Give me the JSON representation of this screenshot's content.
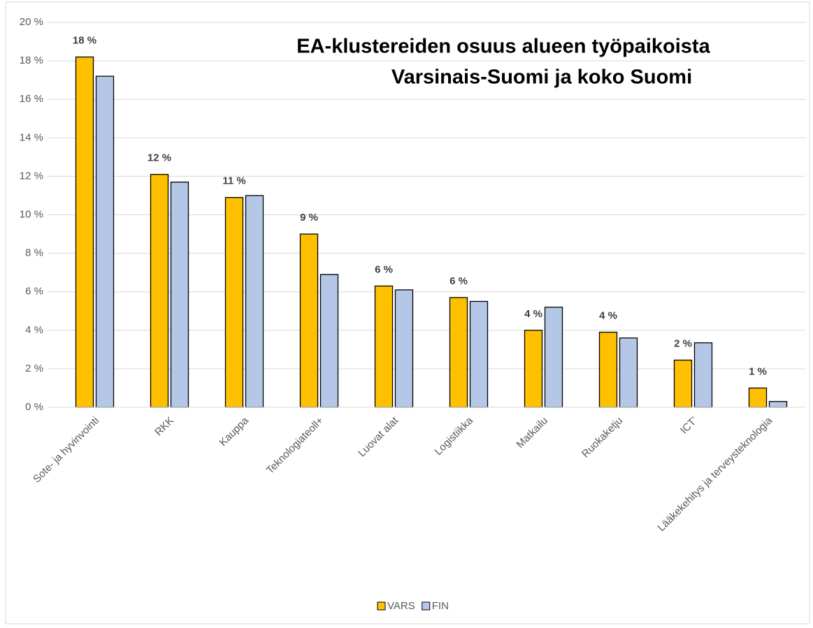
{
  "chart_data": {
    "type": "bar",
    "title": [
      "EA-klustereiden osuus alueen työpaikoista",
      "Varsinais-Suomi ja koko Suomi"
    ],
    "categories": [
      "Sote- ja hyvinvointi",
      "RKK",
      "Kauppa",
      "Teknologiateoll+",
      "Luovat alat",
      "Logistiikka",
      "Matkailu",
      "Ruokaketju",
      "ICT'",
      "Lääkekehitys ja terveysteknologia"
    ],
    "series": [
      {
        "name": "VARS",
        "color": "#ffc000",
        "values": [
          18.2,
          12.1,
          10.9,
          9.0,
          6.3,
          5.7,
          4.0,
          3.9,
          2.45,
          1.0
        ],
        "value_labels": [
          "18 %",
          "12 %",
          "11 %",
          "9 %",
          "6 %",
          "6 %",
          "4 %",
          "4 %",
          "2 %",
          "1 %"
        ]
      },
      {
        "name": "FIN",
        "color": "#b4c7e7",
        "values": [
          17.2,
          11.7,
          11.0,
          6.9,
          6.1,
          5.5,
          5.2,
          3.6,
          3.35,
          0.3
        ]
      }
    ],
    "ylim": [
      0,
      20
    ],
    "yticks": [
      {
        "value": 0,
        "label": "0 %"
      },
      {
        "value": 2,
        "label": "2 %"
      },
      {
        "value": 4,
        "label": "4 %"
      },
      {
        "value": 6,
        "label": "6 %"
      },
      {
        "value": 8,
        "label": "8 %"
      },
      {
        "value": 10,
        "label": "10 %"
      },
      {
        "value": 12,
        "label": "12 %"
      },
      {
        "value": 14,
        "label": "14 %"
      },
      {
        "value": 16,
        "label": "16 %"
      },
      {
        "value": 18,
        "label": "18 %"
      },
      {
        "value": 20,
        "label": "20 %"
      }
    ],
    "grid": true,
    "legend": "bottom"
  }
}
